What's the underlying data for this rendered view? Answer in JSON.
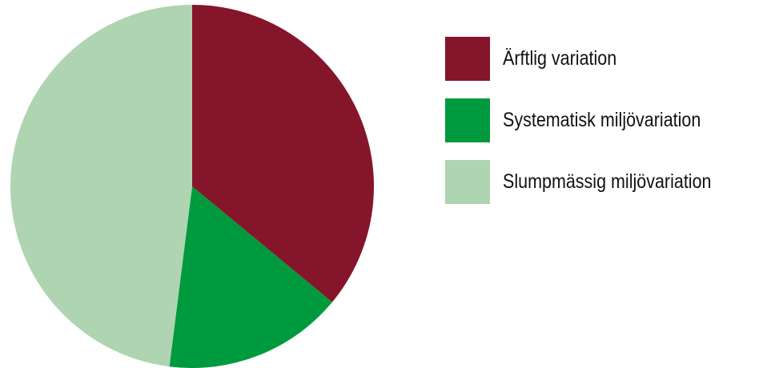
{
  "chart_data": {
    "type": "pie",
    "start_angle_deg": 0,
    "direction": "clockwise",
    "series": [
      {
        "name": "Ärftlig variation",
        "value": 36,
        "color": "#85152A"
      },
      {
        "name": "Systematisk miljövariation",
        "value": 16,
        "color": "#009A3E"
      },
      {
        "name": "Slumpmässig miljövariation",
        "value": 48,
        "color": "#AFD4B1"
      }
    ],
    "legend": "right"
  }
}
